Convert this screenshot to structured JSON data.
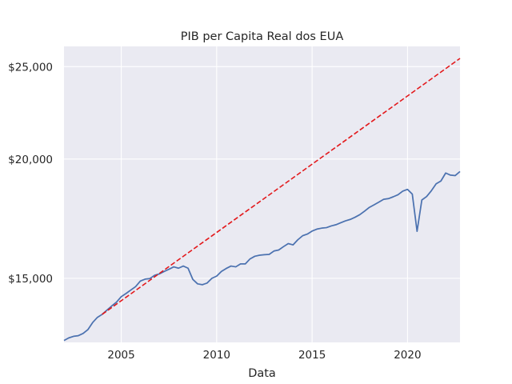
{
  "chart_data": {
    "type": "line",
    "title": "PIB per Capita Real dos EUA",
    "xlabel": "Data",
    "ylabel": "",
    "y_scale": "log",
    "xlim": [
      2002.0,
      2022.75
    ],
    "ylim": [
      12850,
      26250
    ],
    "grid": true,
    "x_ticks": [
      2005,
      2010,
      2015,
      2020
    ],
    "x_tick_labels": [
      "2005",
      "2010",
      "2015",
      "2020"
    ],
    "y_ticks": [
      15000,
      20000,
      25000
    ],
    "y_tick_labels": [
      "$15,000",
      "$20,000",
      "$25,000"
    ],
    "colors": {
      "background": "#eaeaf2",
      "grid": "#ffffff",
      "series_gdp": "#4c72b0",
      "series_trend": "#e3181b"
    },
    "series": [
      {
        "style": "solid",
        "x": [
          2002.0,
          2002.25,
          2002.5,
          2002.75,
          2003.0,
          2003.25,
          2003.5,
          2003.75,
          2004.0,
          2004.25,
          2004.5,
          2004.75,
          2005.0,
          2005.25,
          2005.5,
          2005.75,
          2006.0,
          2006.25,
          2006.5,
          2006.75,
          2007.0,
          2007.25,
          2007.5,
          2007.75,
          2008.0,
          2008.25,
          2008.5,
          2008.75,
          2009.0,
          2009.25,
          2009.5,
          2009.75,
          2010.0,
          2010.25,
          2010.5,
          2010.75,
          2011.0,
          2011.25,
          2011.5,
          2011.75,
          2012.0,
          2012.25,
          2012.5,
          2012.75,
          2013.0,
          2013.25,
          2013.5,
          2013.75,
          2014.0,
          2014.25,
          2014.5,
          2014.75,
          2015.0,
          2015.25,
          2015.5,
          2015.75,
          2016.0,
          2016.25,
          2016.5,
          2016.75,
          2017.0,
          2017.25,
          2017.5,
          2017.75,
          2018.0,
          2018.25,
          2018.5,
          2018.75,
          2019.0,
          2019.25,
          2019.5,
          2019.75,
          2020.0,
          2020.25,
          2020.5,
          2020.75,
          2021.0,
          2021.25,
          2021.5,
          2021.75,
          2022.0,
          2022.25,
          2022.5,
          2022.75
        ],
        "values": [
          12910,
          12990,
          13040,
          13060,
          13130,
          13250,
          13480,
          13650,
          13750,
          13890,
          14030,
          14160,
          14350,
          14460,
          14580,
          14700,
          14900,
          14970,
          14990,
          15110,
          15160,
          15250,
          15330,
          15420,
          15370,
          15450,
          15370,
          14960,
          14800,
          14770,
          14830,
          15000,
          15080,
          15250,
          15360,
          15450,
          15420,
          15530,
          15530,
          15720,
          15820,
          15860,
          15880,
          15890,
          16020,
          16060,
          16190,
          16310,
          16260,
          16460,
          16620,
          16690,
          16810,
          16890,
          16930,
          16950,
          17020,
          17070,
          17150,
          17230,
          17290,
          17380,
          17490,
          17640,
          17800,
          17910,
          18030,
          18150,
          18180,
          18260,
          18350,
          18510,
          18590,
          18380,
          16800,
          18120,
          18270,
          18530,
          18840,
          18970,
          19340,
          19240,
          19220,
          19410
        ]
      },
      {
        "style": "dashed",
        "x": [
          2004.0,
          2022.75
        ],
        "values": [
          13750,
          25500
        ]
      }
    ]
  }
}
